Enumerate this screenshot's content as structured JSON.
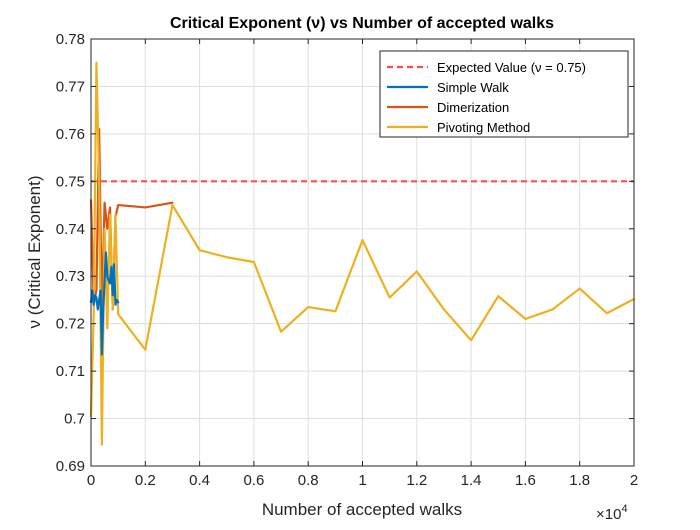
{
  "chart_data": {
    "type": "line",
    "title": "Critical Exponent (ν) vs Number of accepted walks",
    "xlabel": "Number of accepted walks",
    "ylabel": "ν (Critical Exponent)",
    "x_exponent_label": "×10",
    "x_exponent_power": "4",
    "xlim": [
      0,
      20000
    ],
    "ylim": [
      0.69,
      0.78
    ],
    "x_ticks": [
      0,
      2000,
      4000,
      6000,
      8000,
      10000,
      12000,
      14000,
      16000,
      18000,
      20000
    ],
    "x_tick_labels": [
      "0",
      "0.2",
      "0.4",
      "0.6",
      "0.8",
      "1",
      "1.2",
      "1.4",
      "1.6",
      "1.8",
      "2"
    ],
    "y_ticks": [
      0.69,
      0.7,
      0.71,
      0.72,
      0.73,
      0.74,
      0.75,
      0.76,
      0.77,
      0.78
    ],
    "y_tick_labels": [
      "0.69",
      "0.7",
      "0.71",
      "0.72",
      "0.73",
      "0.74",
      "0.75",
      "0.76",
      "0.77",
      "0.78"
    ],
    "grid": true,
    "legend_position": "top-right",
    "series": [
      {
        "name": "Expected Value (ν = 0.75)",
        "color": "#ff4b4b",
        "style": "dashed",
        "x": [
          0,
          20000
        ],
        "y": [
          0.75,
          0.75
        ]
      },
      {
        "name": "Simple Walk",
        "color": "#0072bd",
        "style": "solid",
        "x": [
          0,
          50,
          100,
          150,
          200,
          250,
          300,
          350,
          400,
          450,
          500,
          550,
          600,
          650,
          700,
          750,
          800,
          850,
          900,
          950,
          1000
        ],
        "y": [
          0.7245,
          0.727,
          0.724,
          0.726,
          0.7255,
          0.723,
          0.725,
          0.727,
          0.7135,
          0.723,
          0.729,
          0.735,
          0.73,
          0.729,
          0.7285,
          0.732,
          0.726,
          0.7325,
          0.724,
          0.725,
          0.7245
        ]
      },
      {
        "name": "Dimerization",
        "color": "#d95319",
        "style": "solid",
        "x": [
          0,
          100,
          200,
          300,
          400,
          500,
          600,
          700,
          800,
          900,
          1000,
          2000,
          3000
        ],
        "y": [
          0.746,
          0.724,
          0.727,
          0.761,
          0.722,
          0.7455,
          0.74,
          0.7445,
          0.723,
          0.7425,
          0.745,
          0.7445,
          0.7455
        ]
      },
      {
        "name": "Pivoting Method",
        "color": "#edb120",
        "style": "solid",
        "x": [
          0,
          100,
          200,
          300,
          400,
          500,
          600,
          700,
          800,
          900,
          1000,
          2000,
          3000,
          4000,
          5000,
          6000,
          7000,
          8000,
          9000,
          10000,
          11000,
          12000,
          13000,
          14000,
          15000,
          16000,
          17000,
          18000,
          19000,
          20000
        ],
        "y": [
          0.7005,
          0.722,
          0.775,
          0.75,
          0.6945,
          0.74,
          0.719,
          0.743,
          0.723,
          0.743,
          0.722,
          0.7145,
          0.745,
          0.7355,
          0.734,
          0.733,
          0.7183,
          0.7235,
          0.7226,
          0.7376,
          0.7255,
          0.731,
          0.723,
          0.7165,
          0.7258,
          0.721,
          0.723,
          0.7274,
          0.7222,
          0.7252
        ]
      }
    ]
  }
}
